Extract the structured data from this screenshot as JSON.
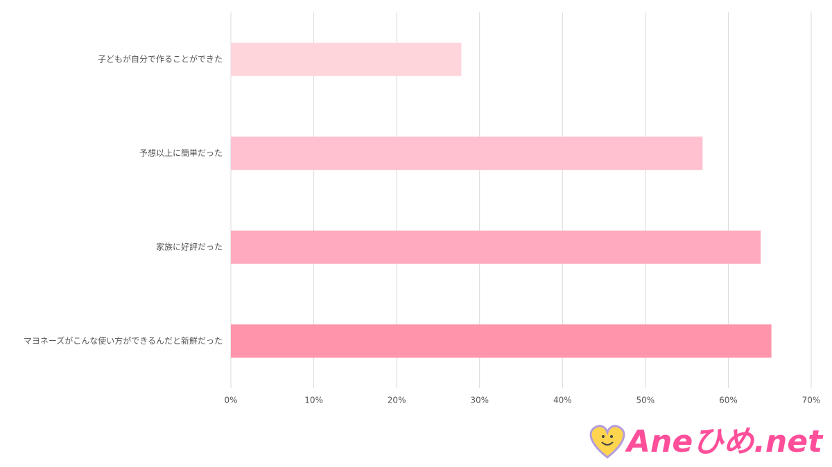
{
  "chart_data": {
    "type": "bar",
    "orientation": "horizontal",
    "categories": [
      "子どもが自分で作ることができた",
      "予想以上に簡単だった",
      "家族に好評だった",
      "マヨネーズがこんな使い方ができるんだと新鮮だった"
    ],
    "values": [
      27.8,
      56.9,
      63.9,
      65.2
    ],
    "colors": [
      "#ffd5dc",
      "#ffc1cf",
      "#ffabbd",
      "#ff94aa"
    ],
    "xlim": [
      0,
      70
    ],
    "xticks": [
      {
        "value": 0,
        "label": "0%"
      },
      {
        "value": 10,
        "label": "10%"
      },
      {
        "value": 20,
        "label": "20%"
      },
      {
        "value": 30,
        "label": "30%"
      },
      {
        "value": 40,
        "label": "40%"
      },
      {
        "value": 50,
        "label": "50%"
      },
      {
        "value": 60,
        "label": "60%"
      },
      {
        "value": 70,
        "label": "70%"
      }
    ],
    "grid": true
  },
  "logo": "Aneひめ.net"
}
